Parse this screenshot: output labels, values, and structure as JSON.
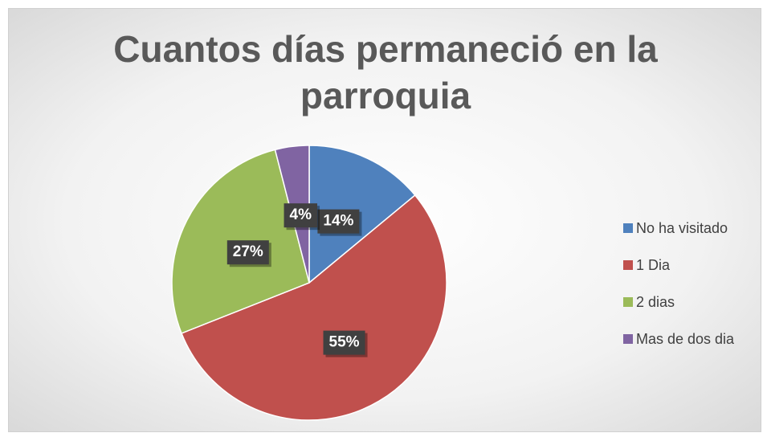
{
  "chart_data": {
    "type": "pie",
    "title": "Cuantos días permaneció en la parroquia",
    "categories": [
      "No ha visitado",
      "1 Dia",
      "2 dias",
      "Mas de dos dia"
    ],
    "values": [
      14,
      55,
      27,
      4
    ],
    "value_labels": [
      "14%",
      "55%",
      "27%",
      "4%"
    ],
    "colors": [
      "#4f81bd",
      "#c0504d",
      "#9bbb59",
      "#8064a2"
    ],
    "legend": "right"
  }
}
